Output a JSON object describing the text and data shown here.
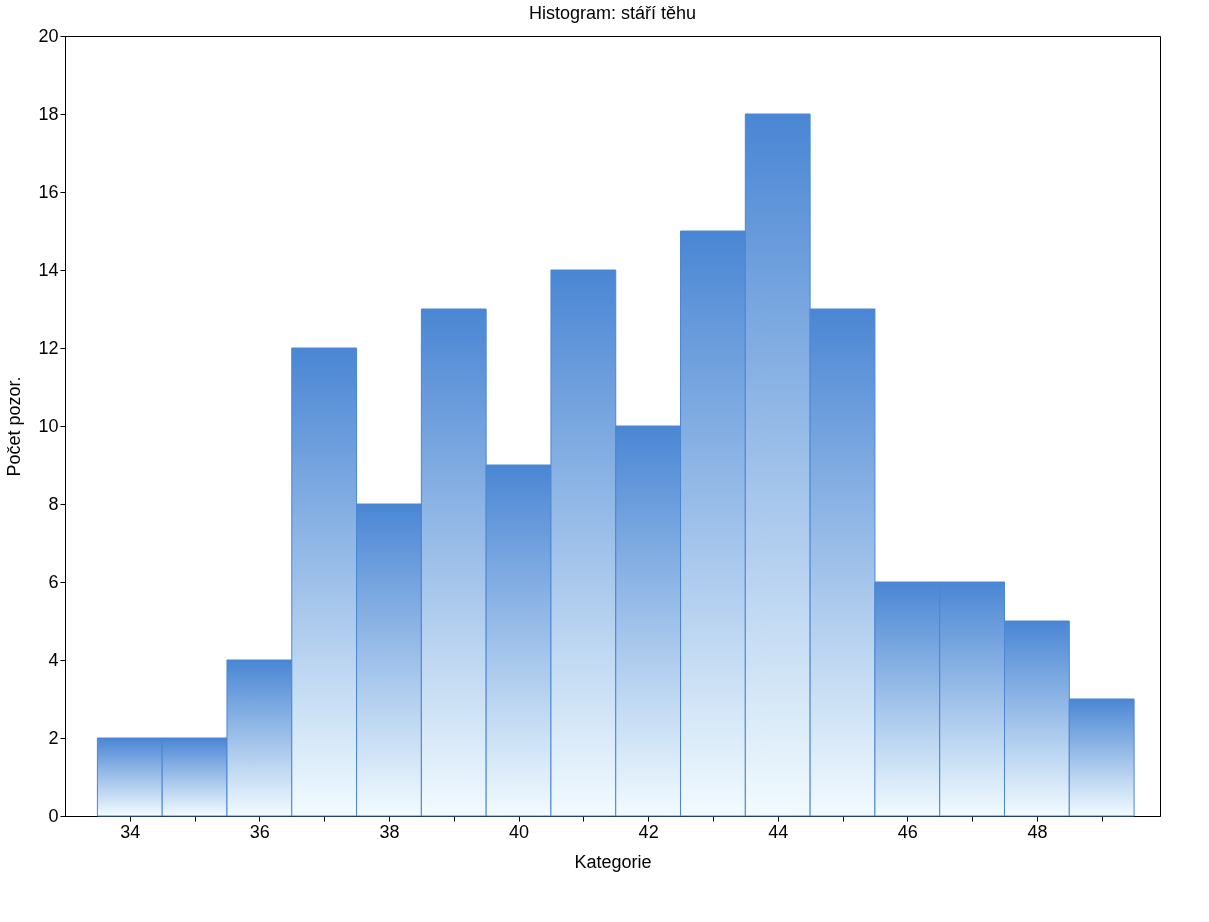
{
  "chart_data": {
    "type": "histogram",
    "title": "Histogram: stáří těhu",
    "xlabel": "Kategorie",
    "ylabel": "Počet pozor.",
    "bins": [
      33.5,
      34.5,
      35.5,
      36.5,
      37.5,
      38.5,
      39.5,
      40.5,
      41.5,
      42.5,
      43.5,
      44.5,
      45.5,
      46.5,
      47.5,
      48.5,
      49.5
    ],
    "values": [
      2,
      2,
      4,
      12,
      8,
      13,
      9,
      14,
      10,
      15,
      18,
      13,
      6,
      6,
      5,
      3
    ],
    "color": "#4a86d4",
    "xlim": [
      33,
      49.9
    ],
    "xticks": [
      34,
      {
        "value": 35,
        "label": null
      },
      36,
      {
        "value": 37,
        "label": null
      },
      38,
      {
        "value": 39,
        "label": null
      },
      40,
      {
        "value": 41,
        "label": null
      },
      42,
      {
        "value": 43,
        "label": null
      },
      44,
      {
        "value": 45,
        "label": null
      },
      46,
      {
        "value": 47,
        "label": null
      },
      48,
      {
        "value": 49,
        "label": null
      }
    ],
    "ylim": [
      0,
      20
    ],
    "yticks": [
      0,
      2,
      4,
      6,
      8,
      10,
      12,
      14,
      16,
      18,
      20
    ],
    "grid": false
  }
}
